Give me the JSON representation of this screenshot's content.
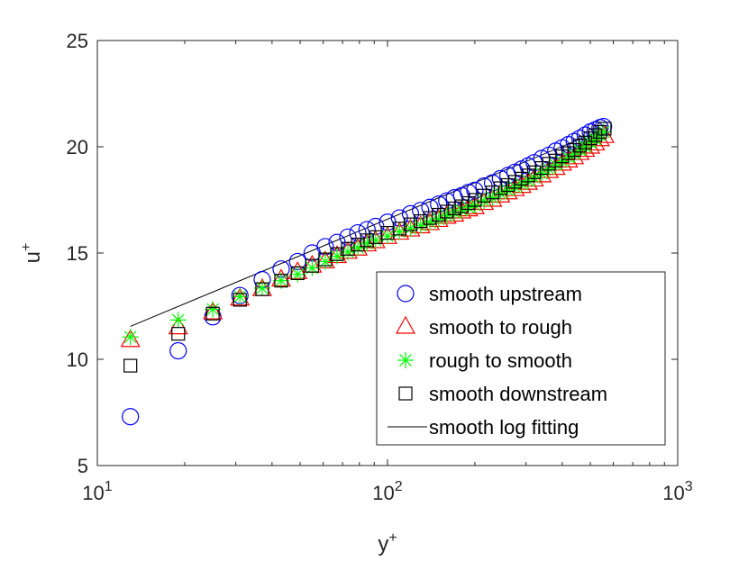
{
  "chart_data": {
    "type": "scatter",
    "title": "",
    "xlabel": "y",
    "xlabel_sup": "+",
    "ylabel": "u",
    "ylabel_sup": "+",
    "xscale": "log",
    "xlim": [
      10,
      1000
    ],
    "ylim": [
      5,
      25
    ],
    "x_ticks": [
      {
        "value": 10,
        "base": "10",
        "exp": "1"
      },
      {
        "value": 100,
        "base": "10",
        "exp": "2"
      },
      {
        "value": 1000,
        "base": "10",
        "exp": "3"
      }
    ],
    "y_ticks": [
      {
        "value": 5,
        "label": "5"
      },
      {
        "value": 10,
        "label": "10"
      },
      {
        "value": 15,
        "label": "15"
      },
      {
        "value": 20,
        "label": "20"
      },
      {
        "value": 25,
        "label": "25"
      }
    ],
    "grid": false,
    "legend_position": "bottom-right",
    "series": [
      {
        "name": "smooth upstream",
        "marker": "circle",
        "color": "#0000ff",
        "x": [
          13,
          19,
          25,
          31,
          37,
          43,
          49,
          55,
          61,
          67,
          73,
          79,
          85,
          91,
          100,
          110,
          120,
          130,
          140,
          150,
          160,
          170,
          180,
          190,
          200,
          215,
          230,
          245,
          260,
          275,
          290,
          305,
          320,
          340,
          360,
          380,
          400,
          420,
          440,
          460,
          480,
          500,
          520,
          540,
          555
        ],
        "y": [
          7.3,
          10.4,
          12.0,
          13.0,
          13.75,
          14.25,
          14.6,
          15.0,
          15.3,
          15.5,
          15.75,
          15.95,
          16.1,
          16.25,
          16.45,
          16.65,
          16.85,
          17.0,
          17.15,
          17.3,
          17.45,
          17.6,
          17.7,
          17.85,
          17.95,
          18.15,
          18.3,
          18.5,
          18.65,
          18.8,
          18.95,
          19.1,
          19.25,
          19.45,
          19.6,
          19.8,
          19.95,
          20.1,
          20.25,
          20.4,
          20.55,
          20.7,
          20.8,
          20.9,
          20.95
        ]
      },
      {
        "name": "smooth to rough",
        "marker": "triangle",
        "color": "#ff0000",
        "x": [
          13,
          19,
          25,
          31,
          37,
          43,
          49,
          55,
          61,
          67,
          73,
          79,
          85,
          91,
          100,
          110,
          120,
          130,
          140,
          150,
          160,
          170,
          180,
          190,
          200,
          215,
          230,
          245,
          260,
          275,
          290,
          305,
          320,
          340,
          360,
          380,
          400,
          420,
          440,
          460,
          480,
          500,
          520,
          540,
          560
        ],
        "y": [
          10.9,
          11.5,
          12.2,
          12.85,
          13.3,
          13.75,
          14.1,
          14.4,
          14.6,
          14.85,
          15.05,
          15.2,
          15.4,
          15.55,
          15.75,
          15.95,
          16.1,
          16.25,
          16.4,
          16.55,
          16.7,
          16.8,
          16.95,
          17.05,
          17.15,
          17.35,
          17.5,
          17.7,
          17.85,
          18.0,
          18.15,
          18.3,
          18.45,
          18.65,
          18.85,
          19.0,
          19.2,
          19.35,
          19.5,
          19.7,
          19.85,
          20.0,
          20.15,
          20.35,
          20.5
        ]
      },
      {
        "name": "rough to smooth",
        "marker": "asterisk",
        "color": "#00ff00",
        "x": [
          13,
          19,
          25,
          31,
          37,
          43,
          49,
          55,
          61,
          67,
          73,
          79,
          85,
          91,
          100,
          110,
          120,
          130,
          140,
          150,
          160,
          170,
          180,
          190,
          200,
          215,
          230,
          245,
          260,
          275,
          290,
          305,
          320,
          340,
          360,
          380,
          400,
          420,
          440,
          460,
          480,
          500,
          520,
          540,
          555
        ],
        "y": [
          11.05,
          11.85,
          12.35,
          12.95,
          13.35,
          13.7,
          14.0,
          14.3,
          14.6,
          14.85,
          15.05,
          15.25,
          15.45,
          15.6,
          15.8,
          16.0,
          16.15,
          16.3,
          16.45,
          16.6,
          16.75,
          16.9,
          17.0,
          17.15,
          17.25,
          17.45,
          17.6,
          17.8,
          17.95,
          18.1,
          18.25,
          18.4,
          18.55,
          18.75,
          18.95,
          19.15,
          19.3,
          19.5,
          19.65,
          19.85,
          20.0,
          20.2,
          20.35,
          20.55,
          20.7
        ]
      },
      {
        "name": "smooth downstream",
        "marker": "square",
        "color": "#000000",
        "x": [
          13,
          19,
          25,
          31,
          37,
          43,
          49,
          55,
          61,
          67,
          73,
          79,
          85,
          91,
          100,
          110,
          120,
          130,
          140,
          150,
          160,
          170,
          180,
          190,
          200,
          215,
          230,
          245,
          260,
          275,
          290,
          305,
          320,
          340,
          360,
          380,
          400,
          420,
          440,
          460,
          480,
          500,
          520,
          540,
          560
        ],
        "y": [
          9.7,
          11.2,
          12.15,
          12.8,
          13.3,
          13.7,
          14.05,
          14.4,
          14.7,
          14.95,
          15.2,
          15.4,
          15.6,
          15.75,
          15.95,
          16.15,
          16.35,
          16.5,
          16.65,
          16.8,
          16.95,
          17.1,
          17.2,
          17.35,
          17.5,
          17.7,
          17.85,
          18.05,
          18.2,
          18.35,
          18.5,
          18.65,
          18.8,
          19.0,
          19.2,
          19.35,
          19.55,
          19.7,
          19.85,
          20.05,
          20.2,
          20.4,
          20.55,
          20.7,
          20.85
        ]
      }
    ],
    "lines": [
      {
        "name": "smooth log fitting",
        "color": "#000000",
        "x": [
          13,
          560
        ],
        "y": [
          11.55,
          20.85
        ]
      }
    ],
    "legend_entries": [
      {
        "label": "smooth upstream",
        "marker": "circle",
        "color": "#0000ff"
      },
      {
        "label": "smooth to rough",
        "marker": "triangle",
        "color": "#ff0000"
      },
      {
        "label": "rough to smooth",
        "marker": "asterisk",
        "color": "#00ff00"
      },
      {
        "label": "smooth downstream",
        "marker": "square",
        "color": "#000000"
      },
      {
        "label": "smooth log fitting",
        "marker": "line",
        "color": "#000000"
      }
    ]
  }
}
